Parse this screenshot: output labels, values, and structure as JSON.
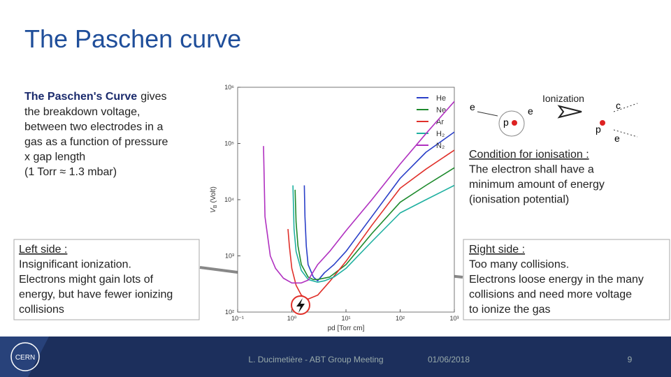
{
  "title": "The Paschen curve",
  "intro": {
    "lead_bold": "The Paschen's Curve",
    "lead_rest": "gives",
    "lines": [
      "the breakdown voltage,",
      "between two electrodes in a",
      "gas as a function of pressure",
      "x gap length",
      "(1 Torr ≈ 1.3 mbar)"
    ]
  },
  "left_box": {
    "heading": "Left side :",
    "lines": [
      "Insignificant ionization.",
      "Electrons might gain lots of",
      "energy, but have fewer ionizing",
      "collisions"
    ]
  },
  "right_box": {
    "heading": "Right side :",
    "lines": [
      "Too many collisions.",
      "Electrons loose energy in the many",
      "collisions and need more voltage",
      "to ionize the gas"
    ]
  },
  "condition": {
    "heading": "Condition for ionisation :",
    "lines": [
      "The electron shall have a",
      "minimum amount of energy",
      "(ionisation potential)"
    ]
  },
  "diagram": {
    "label": "Ionization",
    "particles": [
      "e",
      "p",
      "e",
      "c",
      "p",
      "e"
    ]
  },
  "footer": {
    "logo": "CERN",
    "author": "L. Ducimetière - ABT Group Meeting",
    "date": "01/06/2018",
    "page": "9"
  },
  "chart_data": {
    "type": "line",
    "log_x": true,
    "log_y": true,
    "xlabel": "pd [Torr cm]",
    "ylabel_main": "V",
    "ylabel_sub": "B",
    "ylabel_unit": "(Volt)",
    "xlim": [
      0.1,
      1000
    ],
    "ylim": [
      100,
      1000000
    ],
    "xticks": [
      {
        "value": 0.1,
        "label": "10⁻¹"
      },
      {
        "value": 1,
        "label": "10⁰"
      },
      {
        "value": 10,
        "label": "10¹"
      },
      {
        "value": 100,
        "label": "10²"
      },
      {
        "value": 1000,
        "label": "10³"
      }
    ],
    "yticks": [
      {
        "value": 100,
        "label": "10²"
      },
      {
        "value": 1000,
        "label": "10³"
      },
      {
        "value": 10000,
        "label": "10⁴"
      },
      {
        "value": 100000,
        "label": "10⁵"
      },
      {
        "value": 1000000,
        "label": "10⁶"
      }
    ],
    "series": [
      {
        "name": "He",
        "color": "#2a3fc8",
        "x": [
          1.7,
          1.75,
          1.85,
          2,
          2.5,
          3,
          4,
          6,
          10,
          30,
          100,
          300,
          1000
        ],
        "values": [
          18000,
          5000,
          1500,
          700,
          420,
          360,
          500,
          700,
          1200,
          5000,
          24000,
          70000,
          160000
        ]
      },
      {
        "name": "Ne",
        "color": "#1d8a2c",
        "x": [
          1.15,
          1.2,
          1.3,
          1.5,
          2,
          2.5,
          3,
          5,
          10,
          30,
          100,
          300,
          1000
        ],
        "values": [
          15000,
          4000,
          1500,
          700,
          420,
          380,
          380,
          420,
          700,
          2500,
          9000,
          18000,
          37000
        ]
      },
      {
        "name": "Ar",
        "color": "#e0302a",
        "x": [
          0.85,
          0.9,
          1,
          1.2,
          1.5,
          2,
          3,
          5,
          10,
          30,
          100,
          300,
          1000
        ],
        "values": [
          3000,
          1500,
          600,
          300,
          200,
          170,
          200,
          350,
          800,
          3500,
          16000,
          35000,
          76000
        ]
      },
      {
        "name": "H₂",
        "color": "#1fb0a0",
        "x": [
          1.05,
          1.1,
          1.2,
          1.5,
          2,
          3,
          4,
          6,
          10,
          30,
          100,
          300,
          1000
        ],
        "values": [
          18000,
          3000,
          1200,
          550,
          380,
          340,
          360,
          420,
          600,
          1800,
          5800,
          10000,
          18000
        ]
      },
      {
        "name": "N₂",
        "color": "#b030c0",
        "x": [
          0.3,
          0.32,
          0.4,
          0.5,
          0.7,
          1,
          1.5,
          2,
          3,
          5,
          10,
          30,
          100,
          300,
          1000
        ],
        "values": [
          90000,
          5000,
          1000,
          600,
          400,
          330,
          330,
          370,
          700,
          1200,
          2800,
          10000,
          43000,
          150000,
          560000
        ]
      }
    ]
  }
}
